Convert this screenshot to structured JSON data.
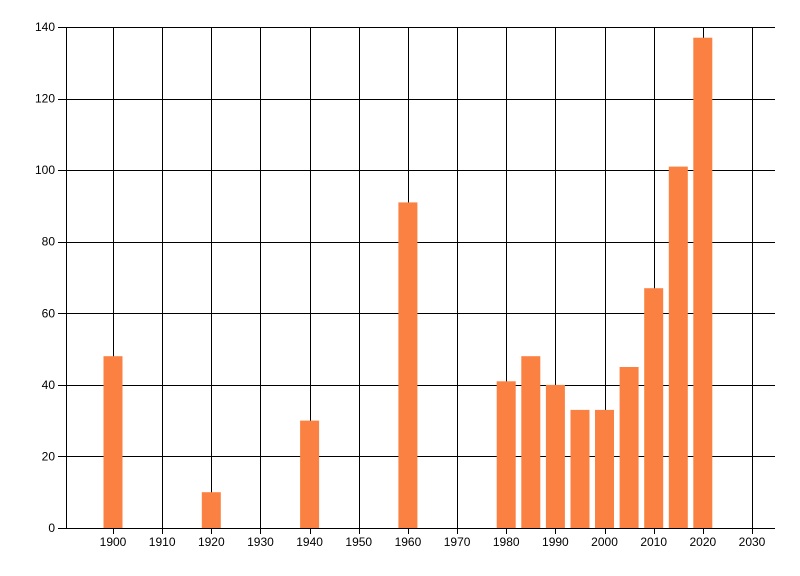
{
  "chart_data": {
    "type": "bar",
    "title": "",
    "xlabel": "",
    "ylabel": "",
    "x": [
      1900,
      1920,
      1940,
      1960,
      1980,
      1985,
      1990,
      1995,
      2000,
      2005,
      2010,
      2015,
      2020
    ],
    "values": [
      48,
      10,
      30,
      91,
      41,
      48,
      40,
      33,
      33,
      45,
      67,
      101,
      137
    ],
    "x_ticks": [
      1900,
      1910,
      1920,
      1930,
      1940,
      1950,
      1960,
      1970,
      1980,
      1990,
      2000,
      2010,
      2020,
      2030
    ],
    "x_tick_labels": [
      "1900",
      "1910",
      "1920",
      "1930",
      "1940",
      "1950",
      "1960",
      "1970",
      "1980",
      "1990",
      "2000",
      "2010",
      "2020",
      "2030"
    ],
    "y_ticks": [
      0,
      20,
      40,
      60,
      80,
      100,
      120,
      140
    ],
    "y_tick_labels": [
      "0",
      "20",
      "40",
      "60",
      "80",
      "100",
      "120",
      "140"
    ],
    "ylim": [
      0,
      140
    ],
    "grid": true,
    "legend": false,
    "bar_color": "#FB8143",
    "gridline_color": "#000000",
    "axis_color": "#000000",
    "label_color": "#000000",
    "background_color": "#FFFFFF"
  }
}
